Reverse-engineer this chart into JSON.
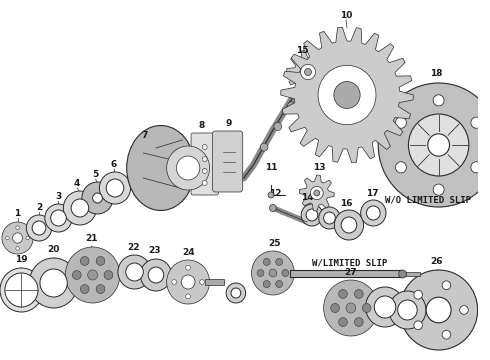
{
  "bg_color": "#ffffff",
  "line_color": "#2a2a2a",
  "text_color": "#1a1a1a",
  "label_wo": "W/O LIMITED SLIP",
  "label_w": "W/LIMITED SLIP",
  "figsize": [
    4.9,
    3.6
  ],
  "dpi": 100
}
